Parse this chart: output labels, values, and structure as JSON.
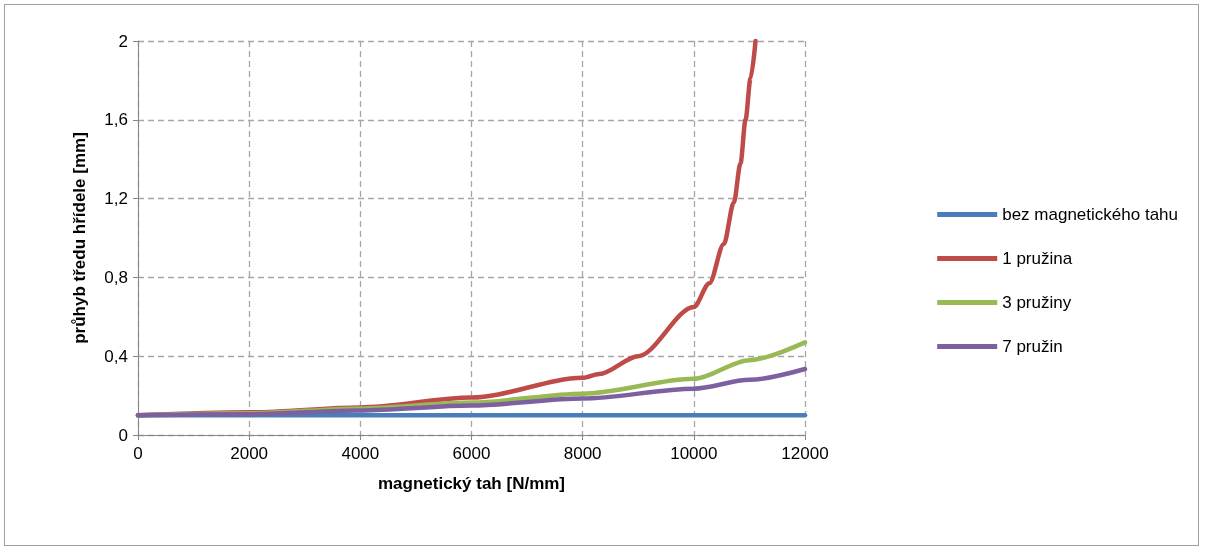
{
  "chart_data": {
    "type": "line",
    "xlabel": "magnetický tah [N/mm]",
    "ylabel": "průhyb tředu hřídele [mm]",
    "xlim": [
      0,
      12000
    ],
    "xticks": [
      0,
      2000,
      4000,
      6000,
      8000,
      10000,
      12000
    ],
    "ylim": [
      0,
      2
    ],
    "yticks": [
      0,
      {
        "value": 0.4,
        "label": "0,4"
      },
      {
        "value": 0.8,
        "label": "0,8"
      },
      {
        "value": 1.2,
        "label": "1,2"
      },
      {
        "value": 1.6,
        "label": "1,6"
      },
      2
    ],
    "grid": true,
    "legend": "right",
    "marker": "none",
    "line_style": "solid",
    "series": [
      {
        "name": "bez magnetického tahu",
        "color": "#4a7ebb",
        "x": [
          0,
          12000
        ],
        "values": [
          0.1,
          0.1
        ]
      },
      {
        "name": "1 pružina",
        "color": "#be4b48",
        "x": [
          0,
          2000,
          4000,
          6000,
          8000,
          8300,
          9000,
          10000,
          10280,
          10540,
          10720,
          10840,
          10930,
          11020,
          11110
        ],
        "values": [
          0.1,
          0.115,
          0.14,
          0.19,
          0.29,
          0.31,
          0.4,
          0.65,
          0.77,
          0.97,
          1.18,
          1.38,
          1.6,
          1.81,
          2
        ]
      },
      {
        "name": "3 pružiny",
        "color": "#98b954",
        "x": [
          0,
          2000,
          4000,
          6000,
          8000,
          10000,
          11000,
          12000
        ],
        "values": [
          0.1,
          0.11,
          0.135,
          0.165,
          0.21,
          0.285,
          0.38,
          0.47
        ]
      },
      {
        "name": "7 pružin",
        "color": "#7d60a0",
        "x": [
          0,
          2000,
          4000,
          6000,
          8000,
          10000,
          11000,
          12000
        ],
        "values": [
          0.1,
          0.105,
          0.125,
          0.15,
          0.185,
          0.235,
          0.28,
          0.335
        ]
      }
    ]
  }
}
